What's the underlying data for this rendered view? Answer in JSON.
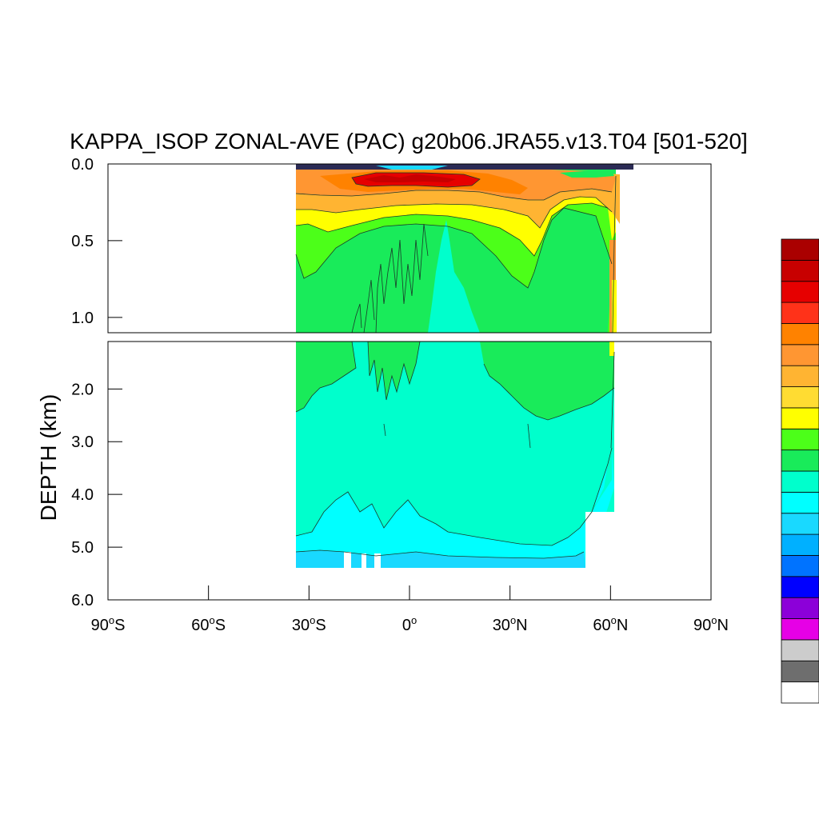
{
  "chart_data": {
    "type": "heatmap",
    "title": "KAPPA_ISOP ZONAL-AVE (PAC) g20b06.JRA55.v13.T04 [501-520]",
    "ylabel": "DEPTH (km)",
    "xlabel": "",
    "x_ticks": [
      {
        "value": -90,
        "label": "90°S",
        "deg": "90",
        "hemi": "S"
      },
      {
        "value": -60,
        "label": "60°S",
        "deg": "60",
        "hemi": "S"
      },
      {
        "value": -30,
        "label": "30°S",
        "deg": "30",
        "hemi": "S"
      },
      {
        "value": 0,
        "label": "0°",
        "deg": "0",
        "hemi": ""
      },
      {
        "value": 30,
        "label": "30°N",
        "deg": "30",
        "hemi": "N"
      },
      {
        "value": 60,
        "label": "60°N",
        "deg": "60",
        "hemi": "N"
      },
      {
        "value": 90,
        "label": "90°N",
        "deg": "90",
        "hemi": "N"
      }
    ],
    "xlim": [
      -90,
      90
    ],
    "panels": [
      {
        "name": "upper",
        "ylim": [
          0.0,
          1.1
        ],
        "y_ticks": [
          {
            "value": 0.0,
            "label": "0.0"
          },
          {
            "value": 0.5,
            "label": "0.5"
          },
          {
            "value": 1.0,
            "label": "1.0"
          }
        ]
      },
      {
        "name": "lower",
        "ylim": [
          1.1,
          6.0
        ],
        "y_ticks": [
          {
            "value": 2.0,
            "label": "2.0"
          },
          {
            "value": 3.0,
            "label": "3.0"
          },
          {
            "value": 4.0,
            "label": "4.0"
          },
          {
            "value": 5.0,
            "label": "5.0"
          },
          {
            "value": 6.0,
            "label": "6.0"
          }
        ]
      }
    ],
    "colorbar_colors": [
      "#ffffff",
      "#6e6e6e",
      "#cccccc",
      "#e600e6",
      "#8c00d9",
      "#0000ff",
      "#0073ff",
      "#00b0ff",
      "#19d9ff",
      "#00ffff",
      "#00ffcc",
      "#19eb5a",
      "#4cff19",
      "#ffff00",
      "#ffdc32",
      "#ffb432",
      "#ff9632",
      "#ff8200",
      "#ff3219",
      "#e60000",
      "#c80000",
      "#aa0000"
    ],
    "regions": [
      {
        "level": "surface_dark",
        "color": "#2b2b55",
        "desc": "thin surface layer"
      },
      {
        "level": "max",
        "color": "#e60000"
      },
      {
        "level": "very_high",
        "color": "#ff8200"
      },
      {
        "level": "high",
        "color": "#ffb432"
      },
      {
        "level": "mid_high",
        "color": "#ffff00"
      },
      {
        "level": "mid",
        "color": "#4cff19"
      },
      {
        "level": "mid_low",
        "color": "#19eb5a"
      },
      {
        "level": "low",
        "color": "#00ffcc"
      },
      {
        "level": "lower",
        "color": "#00ffff"
      },
      {
        "level": "lowest",
        "color": "#19d9ff"
      }
    ]
  }
}
